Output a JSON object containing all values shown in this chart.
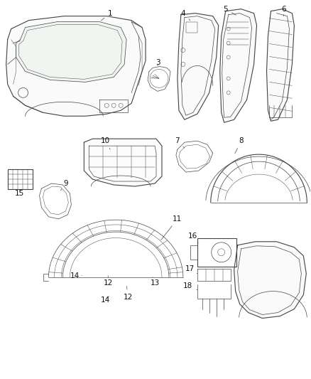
{
  "background_color": "#ffffff",
  "figure_width": 4.38,
  "figure_height": 5.33,
  "dpi": 100,
  "line_color": "#444444",
  "text_color": "#111111",
  "font_size": 7.5
}
